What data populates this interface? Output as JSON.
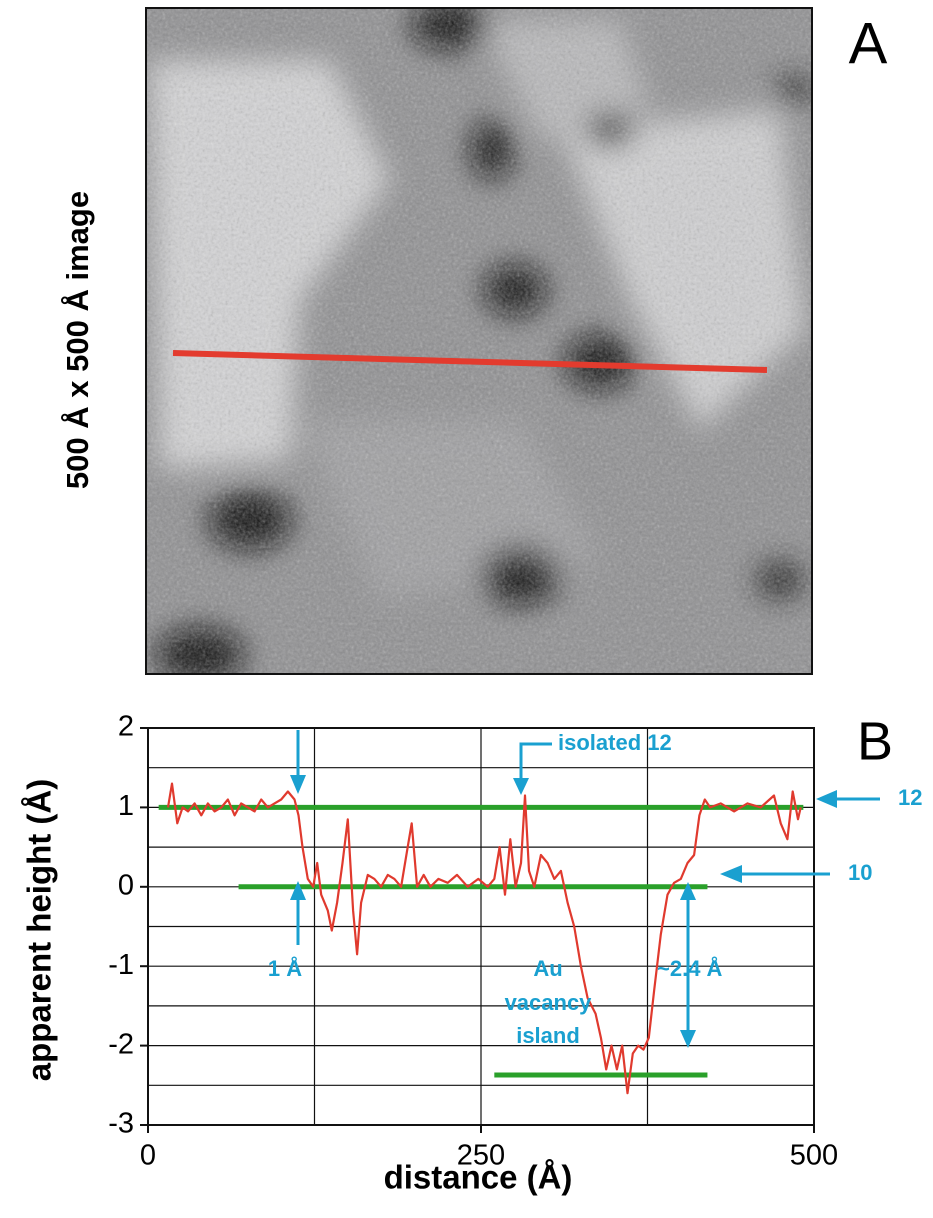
{
  "panel_a": {
    "label": "A",
    "y_label": "500 Å x 500 Å image"
  },
  "chart_data": {
    "type": "line",
    "label": "B",
    "x_label": "distance (Å)",
    "y_label": "apparent height (Å)",
    "xlim": [
      0,
      500
    ],
    "xticks": [
      0,
      250,
      500
    ],
    "ylim": [
      -3,
      2
    ],
    "yticks": [
      -3,
      -2,
      -1,
      0,
      1,
      2
    ],
    "x_gridlines": [
      125,
      250,
      375
    ],
    "y_gridlines": [
      -2.5,
      -2,
      -1.5,
      -1,
      -0.5,
      0,
      0.5,
      1,
      1.5
    ],
    "series": [
      {
        "color": "#e03a2e",
        "x": [
          15,
          18,
          22,
          26,
          30,
          35,
          40,
          45,
          50,
          55,
          60,
          65,
          70,
          75,
          80,
          85,
          90,
          95,
          100,
          105,
          110,
          113,
          116,
          120,
          124,
          127,
          130,
          135,
          138,
          142,
          146,
          150,
          154,
          157,
          160,
          165,
          170,
          175,
          180,
          185,
          190,
          195,
          198,
          202,
          207,
          212,
          218,
          225,
          232,
          240,
          248,
          255,
          260,
          264,
          268,
          272,
          276,
          280,
          283,
          286,
          290,
          295,
          300,
          305,
          310,
          315,
          320,
          325,
          330,
          336,
          340,
          344,
          348,
          352,
          356,
          360,
          364,
          368,
          372,
          376,
          380,
          385,
          390,
          395,
          400,
          405,
          410,
          414,
          418,
          422,
          430,
          440,
          450,
          460,
          470,
          475,
          480,
          484,
          488,
          490
        ],
        "values": [
          1.0,
          1.3,
          0.8,
          1.0,
          0.95,
          1.05,
          0.9,
          1.05,
          0.95,
          1.0,
          1.1,
          0.9,
          1.05,
          1.0,
          0.95,
          1.1,
          1.0,
          1.05,
          1.1,
          1.2,
          1.1,
          0.9,
          0.5,
          0.1,
          0.0,
          0.3,
          -0.1,
          -0.3,
          -0.55,
          -0.2,
          0.3,
          0.85,
          -0.3,
          -0.85,
          -0.2,
          0.15,
          0.1,
          0.0,
          0.15,
          0.1,
          0.0,
          0.5,
          0.8,
          0.0,
          0.15,
          0.0,
          0.1,
          0.05,
          0.15,
          0.0,
          0.1,
          0.0,
          0.1,
          0.5,
          -0.1,
          0.6,
          0.0,
          0.3,
          1.15,
          0.2,
          0.0,
          0.4,
          0.3,
          0.1,
          0.2,
          -0.2,
          -0.5,
          -1.0,
          -1.4,
          -1.6,
          -1.9,
          -2.3,
          -2.0,
          -2.3,
          -2.0,
          -2.6,
          -2.1,
          -2.0,
          -2.05,
          -1.9,
          -1.3,
          -0.6,
          -0.1,
          0.05,
          0.1,
          0.3,
          0.4,
          0.9,
          1.1,
          1.0,
          1.05,
          0.95,
          1.05,
          1.0,
          1.15,
          0.8,
          0.6,
          1.2,
          0.85,
          1.0
        ]
      }
    ],
    "reference_lines": [
      {
        "color": "#2aa02a",
        "y": 1,
        "x": [
          8,
          492
        ]
      },
      {
        "color": "#2aa02a",
        "y": 0,
        "x": [
          68,
          420
        ]
      },
      {
        "color": "#2aa02a",
        "y": -2.37,
        "x": [
          260,
          420
        ]
      }
    ],
    "annotations": {
      "isolated": "isolated 12",
      "step": "1 Å",
      "island": [
        "Au",
        "vacancy",
        "island"
      ],
      "depth": "~2.4 Å",
      "level_12": "12",
      "level_10": "10"
    }
  }
}
